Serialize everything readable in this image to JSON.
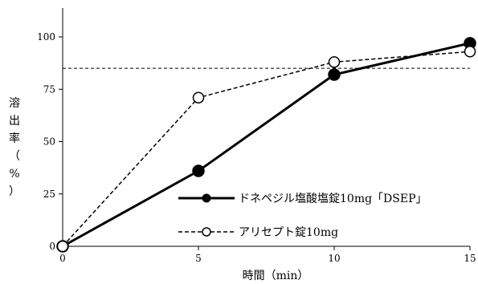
{
  "chart_data": {
    "type": "line",
    "xlabel": "時間（min）",
    "ylabel": "溶出率（%）",
    "ylabel_chars": [
      "溶",
      "出",
      "率",
      "（",
      "%",
      "）"
    ],
    "xlim": [
      0,
      15
    ],
    "ylim": [
      0,
      100
    ],
    "x_ticks": [
      0,
      5,
      10,
      15
    ],
    "y_ticks": [
      0,
      25,
      50,
      75,
      100
    ],
    "reference_line": 85,
    "legend_position": "bottom-right",
    "series": [
      {
        "name": "ドネペジル塩酸塩錠10mg「DSEP」",
        "style": "solid",
        "marker": "filled-circle",
        "color": "#000000",
        "x": [
          0,
          5,
          10,
          15
        ],
        "y": [
          0,
          36,
          82,
          97
        ]
      },
      {
        "name": "アリセプト錠10mg",
        "style": "dashed",
        "marker": "open-circle",
        "color": "#000000",
        "x": [
          0,
          5,
          10,
          15
        ],
        "y": [
          0,
          71,
          88,
          93
        ]
      }
    ]
  }
}
